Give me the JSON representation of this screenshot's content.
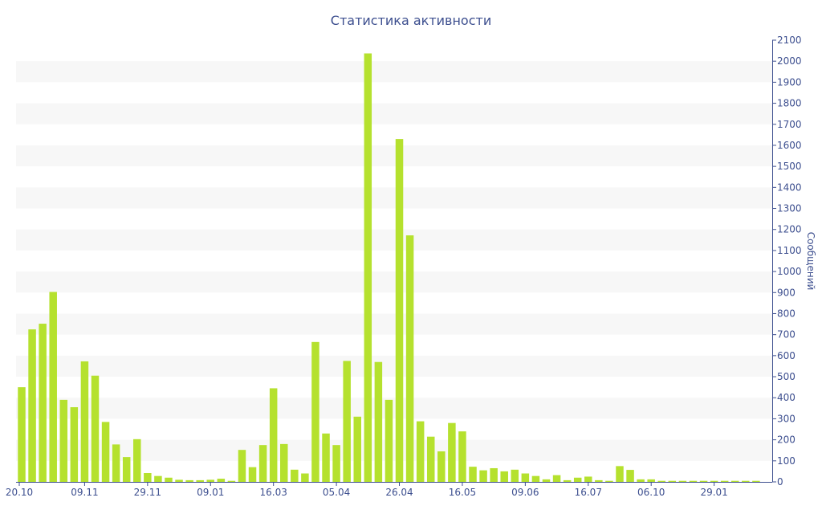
{
  "chart_data": {
    "type": "bar",
    "title": "Статистика активности",
    "ylabel": "Сообщений",
    "ylim": [
      0,
      2100
    ],
    "y_ticks": [
      0,
      100,
      200,
      300,
      400,
      500,
      600,
      700,
      800,
      900,
      1000,
      1100,
      1200,
      1300,
      1400,
      1500,
      1600,
      1700,
      1800,
      1900,
      2000,
      2100
    ],
    "x_tick_labels": [
      "20.10",
      "09.11",
      "29.11",
      "09.01",
      "16.03",
      "05.04",
      "26.04",
      "16.05",
      "09.06",
      "16.07",
      "06.10",
      "29.01"
    ],
    "x_tick_bar_index": [
      0,
      6,
      12,
      18,
      24,
      30,
      36,
      42,
      48,
      54,
      60,
      66
    ],
    "grid": "horizontal bands",
    "legend": "none",
    "bar_color": "#b5e12e",
    "axis_color": "#3d4f8f",
    "series": [
      {
        "values": [
          450,
          725,
          752,
          903,
          390,
          355,
          573,
          505,
          285,
          178,
          118,
          203,
          42,
          28,
          20,
          10,
          8,
          8,
          10,
          15,
          5,
          152,
          70,
          175,
          445,
          180,
          58,
          40,
          665,
          230,
          175,
          575,
          310,
          2037,
          570,
          390,
          1630,
          1172,
          288,
          215,
          145,
          280,
          240,
          72,
          55,
          65,
          50,
          58,
          40,
          28,
          12,
          32,
          8,
          20,
          25,
          8,
          5,
          75,
          57,
          12,
          12,
          5,
          5,
          5,
          5,
          5,
          5,
          5,
          5,
          5,
          5
        ]
      }
    ]
  }
}
